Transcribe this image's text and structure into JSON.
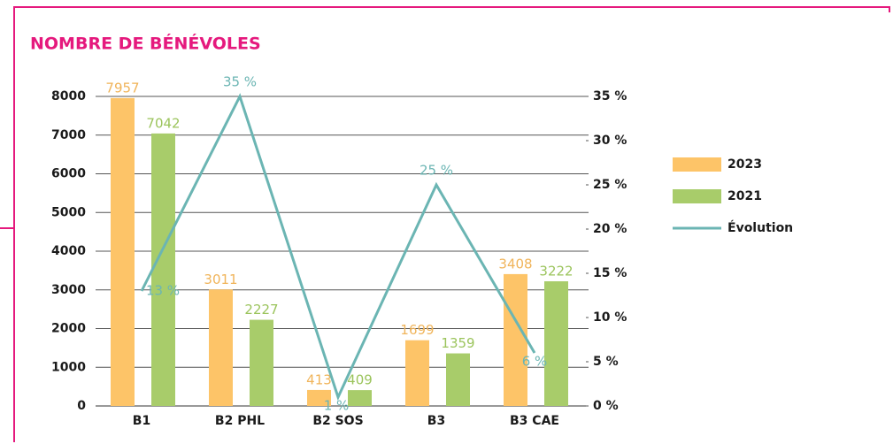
{
  "chart_data": {
    "type": "bar_line",
    "title": "NOMBRE DE BÉNÉVOLES",
    "categories": [
      "B1",
      "B2 PHL",
      "B2 SOS",
      "B3",
      "B3 CAE"
    ],
    "series": [
      {
        "name": "2023",
        "type": "bar",
        "color": "#fdc468",
        "values": [
          7957,
          3011,
          413,
          1699,
          3408
        ]
      },
      {
        "name": "2021",
        "type": "bar",
        "color": "#a8cc6a",
        "values": [
          7042,
          2227,
          409,
          1359,
          3222
        ]
      },
      {
        "name": "Évolution",
        "type": "line",
        "axis": "y2",
        "color": "#6bb5b3",
        "values": [
          13,
          35,
          1,
          25,
          6
        ],
        "value_labels": [
          "13 %",
          "35 %",
          "1 %",
          "25 %",
          "6 %"
        ]
      }
    ],
    "ylim": [
      0,
      8000
    ],
    "yticks": [
      0,
      1000,
      2000,
      3000,
      4000,
      5000,
      6000,
      7000,
      8000
    ],
    "y2lim": [
      0,
      35
    ],
    "y2ticks": [
      {
        "value": 0,
        "label": "0 %"
      },
      {
        "value": 5,
        "label": "5 %"
      },
      {
        "value": 10,
        "label": "10 %"
      },
      {
        "value": 15,
        "label": "15 %"
      },
      {
        "value": 20,
        "label": "20 %"
      },
      {
        "value": 25,
        "label": "25 %"
      },
      {
        "value": 30,
        "label": "30 %"
      },
      {
        "value": 35,
        "label": "35 %"
      }
    ],
    "grid": true,
    "legend": "right"
  }
}
